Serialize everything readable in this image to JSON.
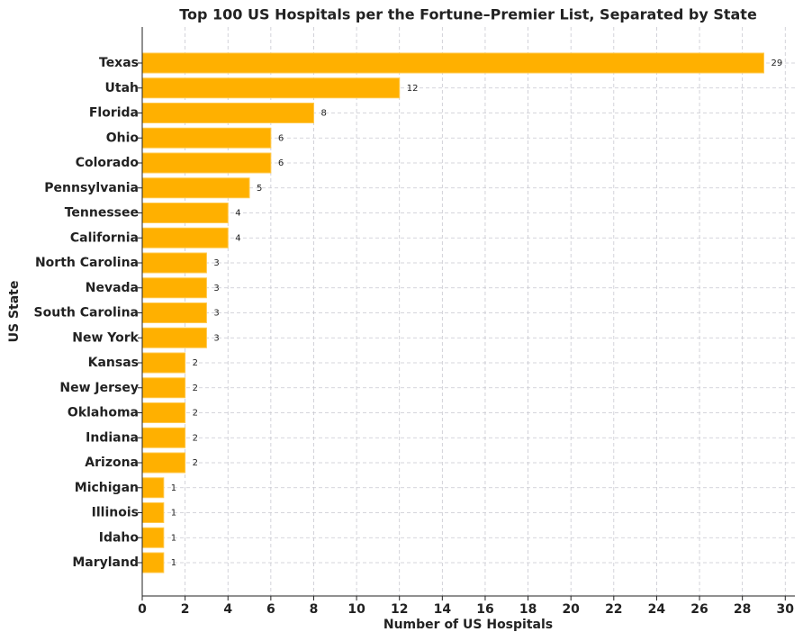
{
  "chart_data": {
    "type": "barh",
    "title": "Top 100 US Hospitals per the Fortune–Premier List, Separated by State",
    "x_label": "Number of US Hospitals",
    "y_label": "US State",
    "categories": [
      "Texas",
      "Utah",
      "Florida",
      "Ohio",
      "Colorado",
      "Pennsylvania",
      "Tennessee",
      "California",
      "North Carolina",
      "Nevada",
      "South Carolina",
      "New York",
      "Kansas",
      "New Jersey",
      "Oklahoma",
      "Indiana",
      "Arizona",
      "Michigan",
      "Illinois",
      "Idaho",
      "Maryland"
    ],
    "values": [
      29,
      12,
      8,
      6,
      6,
      5,
      4,
      4,
      3,
      3,
      3,
      3,
      2,
      2,
      2,
      2,
      2,
      1,
      1,
      1,
      1
    ],
    "color": "#ffb000",
    "xlim": [
      0,
      30.45
    ],
    "xticks": [
      0,
      2,
      4,
      6,
      8,
      10,
      12,
      14,
      16,
      18,
      20,
      22,
      24,
      26,
      28,
      30
    ],
    "grid": true
  }
}
